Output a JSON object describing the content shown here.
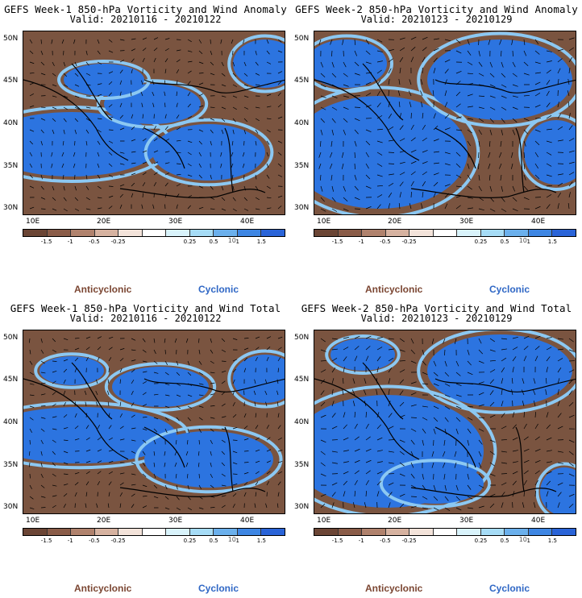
{
  "panels": [
    {
      "title": "GEFS Week-1 850-hPa Vorticity and Wind Anomaly",
      "valid": "Valid: 20210116 - 20210122"
    },
    {
      "title": "GEFS Week-2 850-hPa Vorticity and Wind Anomaly",
      "valid": "Valid: 20210123 - 20210129"
    },
    {
      "title": "GEFS Week-1 850-hPa Vorticity and Wind Total",
      "valid": "Valid: 20210116 - 20210122"
    },
    {
      "title": "GEFS Week-2 850-hPa Vorticity and Wind Total",
      "valid": "Valid: 20210123 - 20210129"
    }
  ],
  "lat_labels": [
    "50N",
    "45N",
    "40N",
    "35N",
    "30N"
  ],
  "lon_labels": [
    "10E",
    "20E",
    "30E",
    "40E"
  ],
  "colorbar": {
    "ticks": [
      "-1.5",
      "-1",
      "-0.5",
      "-0.25",
      "0.25",
      "0.5",
      "1",
      "1.5"
    ],
    "units": "10",
    "colors": [
      "#6b4535",
      "#8a5c48",
      "#b0826d",
      "#d6b2a0",
      "#f3e3da",
      "#ffffff",
      "#d9f3fb",
      "#a6dcf6",
      "#6bb0ec",
      "#3e86e3",
      "#2a64d8"
    ]
  },
  "legend": {
    "anticyclonic": "Anticyclonic",
    "cyclonic": "Cyclonic"
  },
  "field_colors": {
    "anticyclonic": "#7a5440",
    "cyclonic": "#2c74e0",
    "light_cyclonic": "#8cc8f2",
    "light_anticyclonic": "#c7a18d"
  }
}
